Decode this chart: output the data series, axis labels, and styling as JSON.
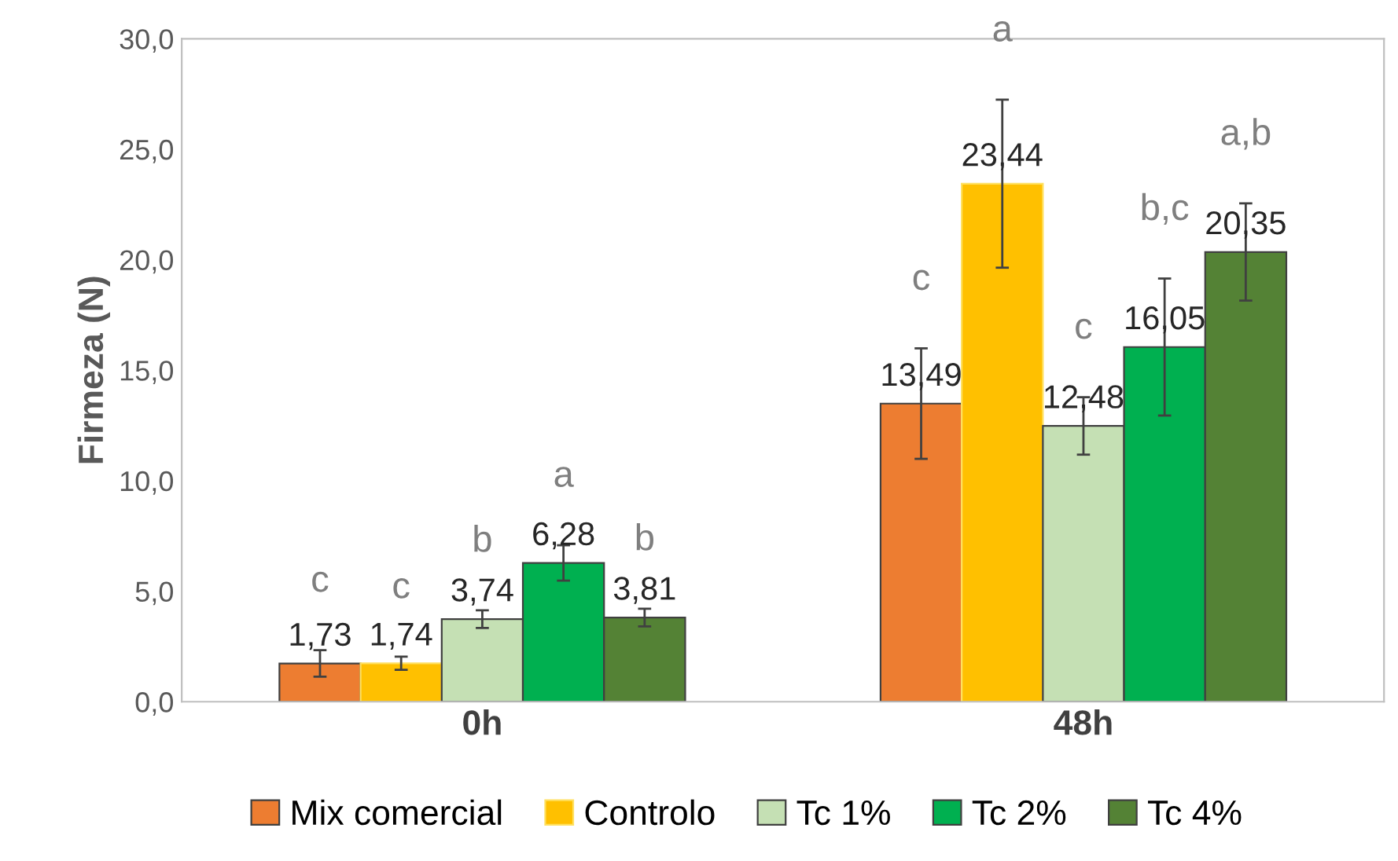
{
  "chart_data": {
    "type": "bar",
    "ylabel": "Firmeza (N)",
    "categories": [
      "0h",
      "48h"
    ],
    "series": [
      {
        "name": "Mix comercial",
        "color": "#ed7d31",
        "values": [
          1.73,
          13.49
        ],
        "errors": [
          0.6,
          2.5
        ],
        "value_labels": [
          "1,73",
          "13,49"
        ]
      },
      {
        "name": "Controlo",
        "color": "#ffc000",
        "values": [
          1.74,
          23.44
        ],
        "errors": [
          0.3,
          3.8
        ],
        "value_labels": [
          "1,74",
          "23,44"
        ]
      },
      {
        "name": "Tc 1%",
        "color": "#c5e0b4",
        "values": [
          3.74,
          12.48
        ],
        "errors": [
          0.4,
          1.3
        ],
        "value_labels": [
          "3,74",
          "12,48"
        ]
      },
      {
        "name": "Tc 2%",
        "color": "#00b050",
        "values": [
          6.28,
          16.05
        ],
        "errors": [
          0.8,
          3.1
        ],
        "value_labels": [
          "6,28",
          "16,05"
        ]
      },
      {
        "name": "Tc 4%",
        "color": "#548235",
        "values": [
          3.81,
          20.35
        ],
        "errors": [
          0.4,
          2.2
        ],
        "value_labels": [
          "3,81",
          "20,35"
        ]
      }
    ],
    "annotations": [
      "c",
      "c",
      "b",
      "a",
      "b",
      "c",
      "a",
      "c",
      "b,c",
      "a,b"
    ],
    "ylim": [
      0,
      30
    ],
    "yticks": [
      {
        "value": 0,
        "label": "0,0"
      },
      {
        "value": 5,
        "label": "5,0"
      },
      {
        "value": 10,
        "label": "10,0"
      },
      {
        "value": 15,
        "label": "15,0"
      },
      {
        "value": 20,
        "label": "20,0"
      },
      {
        "value": 25,
        "label": "25,0"
      },
      {
        "value": 30,
        "label": "30,0"
      }
    ],
    "grid": false,
    "legend": "bottom"
  }
}
